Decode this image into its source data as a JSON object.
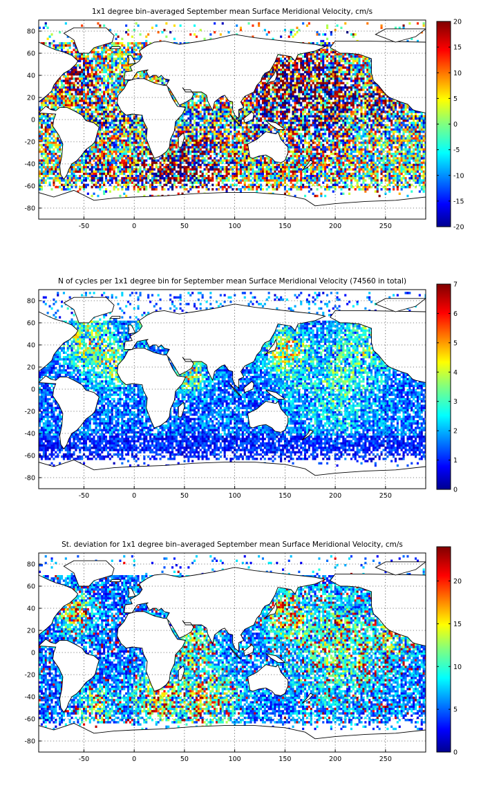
{
  "panels": [
    {
      "title": "1x1 degree bin–averaged September mean Surface Meridional Velocity, cm/s",
      "x_ticks": [
        "-50",
        "0",
        "50",
        "100",
        "150",
        "200",
        "250"
      ],
      "y_ticks": [
        "80",
        "60",
        "40",
        "20",
        "0",
        "-20",
        "-40",
        "-60",
        "-80"
      ],
      "colorbar_ticks": [
        "20",
        "15",
        "10",
        "5",
        "0",
        "-5",
        "-10",
        "-15",
        "-20"
      ],
      "colorbar_range": [
        -20,
        20
      ],
      "field": "diverging"
    },
    {
      "title": "N of cycles per 1x1 degree bin for September mean Surface Meridional Velocity (74560 in total)",
      "x_ticks": [
        "-50",
        "0",
        "50",
        "100",
        "150",
        "200",
        "250"
      ],
      "y_ticks": [
        "80",
        "60",
        "40",
        "20",
        "0",
        "-20",
        "-40",
        "-60",
        "-80"
      ],
      "colorbar_ticks": [
        "7",
        "6",
        "5",
        "4",
        "3",
        "2",
        "1",
        "0"
      ],
      "colorbar_range": [
        0,
        7
      ],
      "field": "count"
    },
    {
      "title": "St. deviation for 1x1 degree bin–averaged September mean Surface Meridional Velocity, cm/s",
      "x_ticks": [
        "-50",
        "0",
        "50",
        "100",
        "150",
        "200",
        "250"
      ],
      "y_ticks": [
        "80",
        "60",
        "40",
        "20",
        "0",
        "-20",
        "-40",
        "-60",
        "-80"
      ],
      "colorbar_ticks": [
        "20",
        "15",
        "10",
        "5",
        "0"
      ],
      "colorbar_range": [
        0,
        24
      ],
      "field": "std"
    }
  ],
  "map_extent": {
    "lon": [
      -95,
      290
    ],
    "lat": [
      -90,
      90
    ]
  },
  "colormap": "jet",
  "colors": {
    "land": "#ffffff",
    "coast": "#000000"
  }
}
